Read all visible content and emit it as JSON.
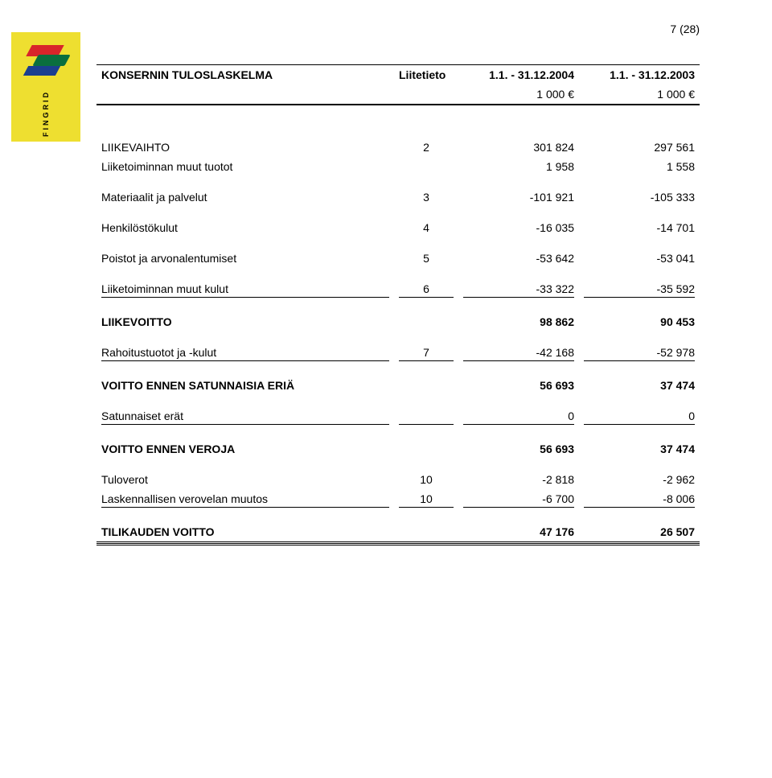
{
  "pagenum": "7 (28)",
  "logo_text": "FINGRID",
  "header": {
    "title": "KONSERNIN TULOSLASKELMA",
    "note_col": "Liitetieto",
    "period1": "1.1. - 31.12.2004",
    "period2": "1.1. - 31.12.2003",
    "unit1": "1 000 €",
    "unit2": "1 000 €"
  },
  "rows": {
    "liikevaihto": {
      "label": "LIIKEVAIHTO",
      "note": "2",
      "v1": "301 824",
      "v2": "297 561"
    },
    "muut_tuotot": {
      "label": "Liiketoiminnan muut tuotot",
      "note": "",
      "v1": "1 958",
      "v2": "1 558"
    },
    "materiaalit": {
      "label": "Materiaalit ja palvelut",
      "note": "3",
      "v1": "-101 921",
      "v2": "-105 333"
    },
    "henkilosto": {
      "label": "Henkilöstökulut",
      "note": "4",
      "v1": "-16 035",
      "v2": "-14 701"
    },
    "poistot": {
      "label": "Poistot ja arvonalentumiset",
      "note": "5",
      "v1": "-53 642",
      "v2": "-53 041"
    },
    "muut_kulut": {
      "label": "Liiketoiminnan muut kulut",
      "note": "6",
      "v1": "-33 322",
      "v2": "-35 592"
    },
    "liikevoitto": {
      "label": "LIIKEVOITTO",
      "note": "",
      "v1": "98 862",
      "v2": "90 453"
    },
    "rahoitus": {
      "label": "Rahoitustuotot ja -kulut",
      "note": "7",
      "v1": "-42 168",
      "v2": "-52 978"
    },
    "ennen_satunnaisia": {
      "label": "VOITTO ENNEN SATUNNAISIA ERIÄ",
      "note": "",
      "v1": "56 693",
      "v2": "37 474"
    },
    "satunnaiset": {
      "label": "Satunnaiset erät",
      "note": "",
      "v1": "0",
      "v2": "0"
    },
    "ennen_veroja": {
      "label": "VOITTO ENNEN VEROJA",
      "note": "",
      "v1": "56 693",
      "v2": "37 474"
    },
    "tuloverot": {
      "label": "Tuloverot",
      "note": "10",
      "v1": "-2 818",
      "v2": "-2 962"
    },
    "lask_verovelan": {
      "label": "Laskennallisen verovelan muutos",
      "note": "10",
      "v1": "-6 700",
      "v2": "-8 006"
    },
    "tilikauden": {
      "label": "TILIKAUDEN VOITTO",
      "note": "",
      "v1": "47 176",
      "v2": "26 507"
    }
  }
}
